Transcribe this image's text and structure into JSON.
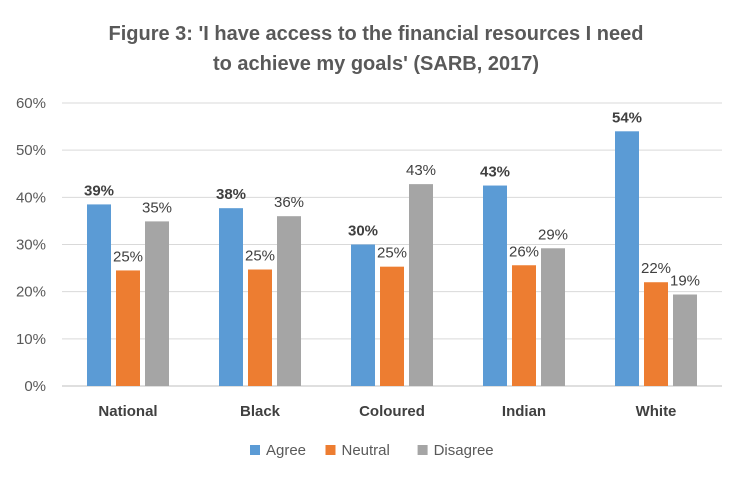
{
  "chart_data": {
    "type": "bar",
    "title_lines": [
      "Figure 3: 'I have access to the financial resources I need",
      "to achieve my goals' (SARB, 2017)"
    ],
    "categories": [
      "National",
      "Black",
      "Coloured",
      "Indian",
      "White"
    ],
    "series": [
      {
        "name": "Agree",
        "color": "#5b9bd5",
        "values": [
          38.5,
          37.7,
          30.0,
          42.5,
          54.0
        ],
        "labels": [
          "39%",
          "38%",
          "30%",
          "43%",
          "54%"
        ]
      },
      {
        "name": "Neutral",
        "color": "#ed7d31",
        "values": [
          24.5,
          24.7,
          25.3,
          25.6,
          22.0
        ],
        "labels": [
          "25%",
          "25%",
          "25%",
          "26%",
          "22%"
        ]
      },
      {
        "name": "Disagree",
        "color": "#a5a5a5",
        "values": [
          34.9,
          36.0,
          42.8,
          29.2,
          19.4
        ],
        "labels": [
          "35%",
          "36%",
          "43%",
          "29%",
          "19%"
        ]
      }
    ],
    "y_ticks": [
      "0%",
      "10%",
      "20%",
      "30%",
      "40%",
      "50%",
      "60%"
    ],
    "ylim": [
      0,
      60
    ],
    "grid": true,
    "legend_position": "bottom"
  }
}
